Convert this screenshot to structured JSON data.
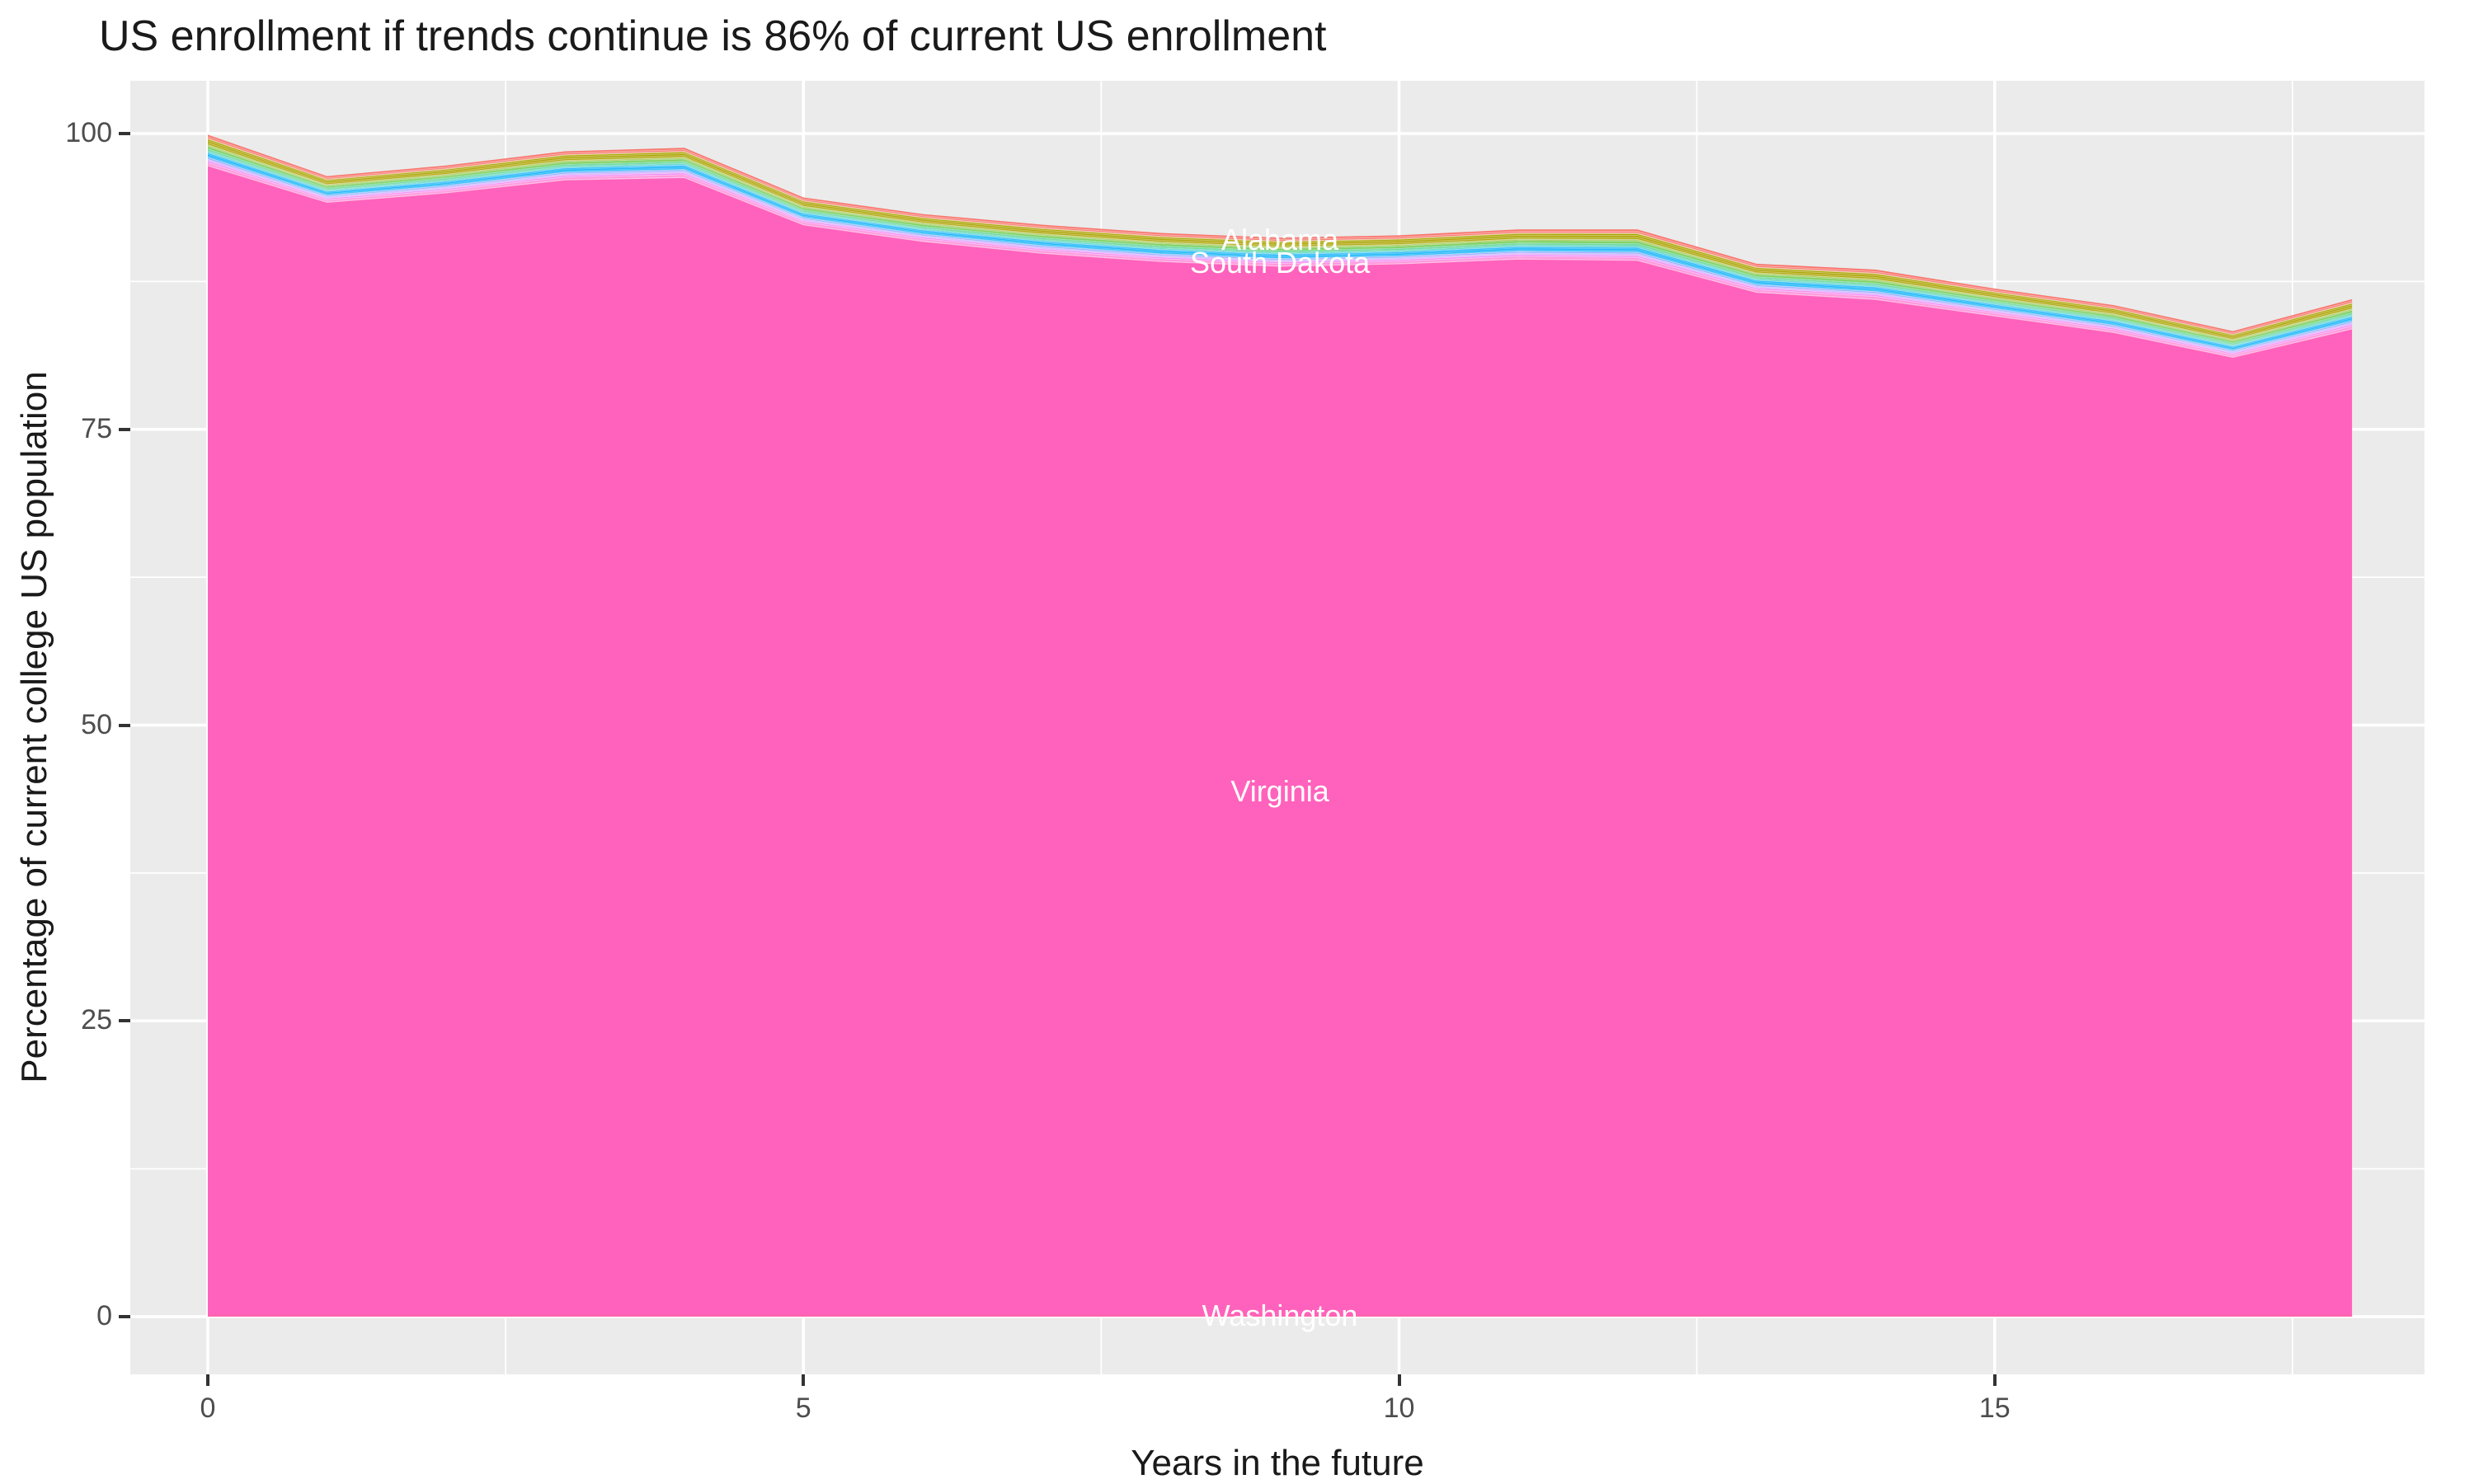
{
  "title": "US enrollment if trends continue is 86% of current US enrollment",
  "chart_data": {
    "type": "area",
    "stacked": true,
    "title": "US enrollment if trends continue is 86% of current US enrollment",
    "xlabel": "Years in the future",
    "ylabel": "Percentage of current college US population",
    "x": [
      0,
      1,
      2,
      3,
      4,
      5,
      6,
      7,
      8,
      9,
      10,
      11,
      12,
      13,
      14,
      15,
      16,
      17,
      18
    ],
    "x_ticks": [
      0,
      5,
      10,
      15
    ],
    "y_ticks": [
      0,
      25,
      50,
      75,
      100
    ],
    "xlim": [
      -0.65,
      18.6
    ],
    "ylim": [
      -4.9,
      104.5
    ],
    "grid": true,
    "legend": "none",
    "panel_bg": "#EBEBEB",
    "grid_color": "#FFFFFF",
    "tick_label_color": "#4D4D4D",
    "stack_top_total": [
      99.9,
      96.4,
      97.3,
      98.5,
      98.8,
      94.6,
      93.2,
      92.3,
      91.6,
      91.2,
      91.4,
      91.9,
      91.9,
      89.0,
      88.5,
      86.9,
      85.5,
      83.3,
      86.0
    ],
    "virginia_band_top": [
      97.3,
      94.2,
      95.0,
      96.1,
      96.3,
      92.3,
      90.9,
      89.9,
      89.2,
      88.8,
      89.0,
      89.4,
      89.3,
      86.6,
      86.0,
      84.6,
      83.2,
      81.1,
      83.5
    ],
    "label_year": 9,
    "series": [
      {
        "name": "Alabama",
        "color": "#F8766D",
        "span": "fraction",
        "weight": 0.13,
        "stripes": 2
      },
      {
        "name": "states-olive-band",
        "color": "#ABA300",
        "span": "fraction",
        "weight": 0.2,
        "stripes": 3
      },
      {
        "name": "states-yellowgreen-band",
        "color": "#7CAE00",
        "span": "fraction",
        "weight": 0.05,
        "stripes": 1
      },
      {
        "name": "states-green-band",
        "color": "#2CB400",
        "span": "fraction",
        "weight": 0.08,
        "stripes": 2
      },
      {
        "name": "states-emerald-band",
        "color": "#00BC59",
        "span": "fraction",
        "weight": 0.07,
        "stripes": 2
      },
      {
        "name": "states-teal-band",
        "color": "#00C1A7",
        "span": "fraction",
        "weight": 0.05,
        "stripes": 1
      },
      {
        "name": "states-azure-band",
        "color": "#00AEF8",
        "span": "fraction",
        "weight": 0.16,
        "stripes": 3
      },
      {
        "name": "states-cornflower-band",
        "color": "#7C96FF",
        "span": "fraction",
        "weight": 0.06,
        "stripes": 1
      },
      {
        "name": "states-violet-band",
        "color": "#BC81FF",
        "span": "fraction",
        "weight": 0.05,
        "stripes": 1
      },
      {
        "name": "South Dakota",
        "color": "#EF67F1",
        "span": "fraction",
        "weight": 0.06,
        "stripes": 1
      },
      {
        "name": "states-magenta-band",
        "color": "#FF61CC",
        "span": "fraction",
        "weight": 0.09,
        "stripes": 2
      },
      {
        "name": "Virginia",
        "color": "#FF62BC",
        "span": "remainder"
      },
      {
        "name": "Washington",
        "color": "#FF64B0",
        "span": "floor",
        "value": 0.2
      }
    ],
    "area_labels": [
      {
        "text": "Alabama",
        "series": "Alabama"
      },
      {
        "text": "South Dakota",
        "series": "South Dakota"
      },
      {
        "text": "Virginia",
        "series": "Virginia"
      },
      {
        "text": "Washington",
        "series": "Washington"
      }
    ]
  }
}
